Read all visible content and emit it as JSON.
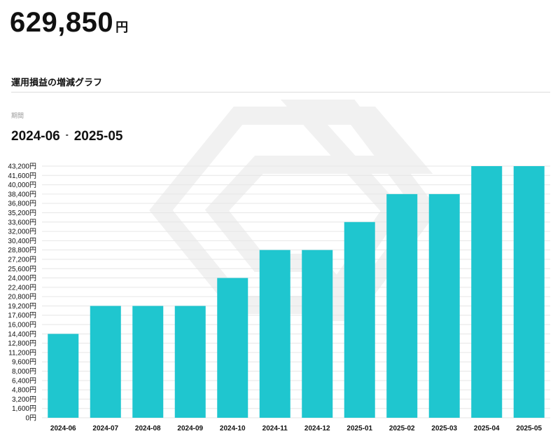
{
  "header": {
    "total_value": "629,850",
    "total_unit": "円"
  },
  "section": {
    "title": "運用損益の増減グラフ"
  },
  "period": {
    "label": "期間",
    "start": "2024-06",
    "separator": "-",
    "end": "2025-05"
  },
  "colors": {
    "bar": "#1fc6cf",
    "grid": "#e6e6e6",
    "watermark": "#f1f1f1"
  },
  "chart_data": {
    "type": "bar",
    "categories": [
      "2024-06",
      "2024-07",
      "2024-08",
      "2024-09",
      "2024-10",
      "2024-11",
      "2024-12",
      "2025-01",
      "2025-02",
      "2025-03",
      "2025-04",
      "2025-05"
    ],
    "values": [
      14400,
      19200,
      19200,
      19200,
      24000,
      28800,
      28800,
      33600,
      38400,
      38400,
      43200,
      43200
    ],
    "ylim": [
      0,
      43200
    ],
    "ytick_step": 1600,
    "ytick_labels": [
      "0円",
      "1,600円",
      "3,200円",
      "4,800円",
      "6,400円",
      "8,000円",
      "9,600円",
      "11,200円",
      "12,800円",
      "14,400円",
      "16,000円",
      "17,600円",
      "19,200円",
      "20,800円",
      "22,400円",
      "24,000円",
      "25,600円",
      "27,200円",
      "28,800円",
      "30,400円",
      "32,000円",
      "33,600円",
      "35,200円",
      "36,800円",
      "38,400円",
      "40,000円",
      "41,600円",
      "43,200円"
    ],
    "grid": true,
    "legend": "none"
  }
}
